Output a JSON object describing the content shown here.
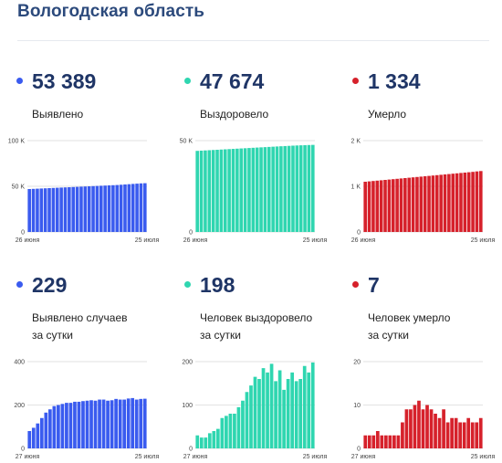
{
  "page": {
    "title": "Вологодская область"
  },
  "colors": {
    "blue": "#3a5bef",
    "green": "#2fd6b0",
    "red": "#d6212b",
    "grid": "#e2e2e2"
  },
  "stats": [
    {
      "value": "53 389",
      "label": "Выявлено",
      "color": "#3a5bef"
    },
    {
      "value": "47 674",
      "label": "Выздоровело",
      "color": "#2fd6b0"
    },
    {
      "value": "1 334",
      "label": "Умерло",
      "color": "#d6212b"
    },
    {
      "value": "229",
      "label": "Выявлено случаев\nза сутки",
      "color": "#3a5bef"
    },
    {
      "value": "198",
      "label": "Человек выздоровело\nза сутки",
      "color": "#2fd6b0"
    },
    {
      "value": "7",
      "label": "Человек умерло\nза сутки",
      "color": "#d6212b"
    }
  ],
  "chart_data": [
    {
      "type": "bar",
      "x_start": "26 июня",
      "x_end": "25 июля",
      "ylim": [
        0,
        100000
      ],
      "y_ticks": [
        {
          "v": 0,
          "t": "0"
        },
        {
          "v": 50000,
          "t": "50 K"
        },
        {
          "v": 100000,
          "t": "100 K"
        }
      ],
      "color": "#3a5bef",
      "values": [
        47000,
        47200,
        47400,
        47600,
        47800,
        48000,
        48200,
        48400,
        48600,
        48800,
        49000,
        49200,
        49400,
        49600,
        49800,
        50000,
        50200,
        50400,
        50600,
        50800,
        51000,
        51200,
        51400,
        51700,
        52000,
        52300,
        52600,
        52900,
        53200,
        53389
      ]
    },
    {
      "type": "bar",
      "x_start": "26 июня",
      "x_end": "25 июля",
      "ylim": [
        0,
        50000
      ],
      "y_ticks": [
        {
          "v": 0,
          "t": "0"
        },
        {
          "v": 50000,
          "t": "50 K"
        }
      ],
      "color": "#2fd6b0",
      "values": [
        44400,
        44520,
        44640,
        44760,
        44880,
        45000,
        45120,
        45240,
        45360,
        45480,
        45600,
        45720,
        45840,
        45960,
        46080,
        46200,
        46320,
        46440,
        46560,
        46680,
        46800,
        46920,
        47030,
        47140,
        47250,
        47350,
        47440,
        47520,
        47600,
        47674
      ]
    },
    {
      "type": "bar",
      "x_start": "26 июня",
      "x_end": "25 июля",
      "ylim": [
        0,
        2000
      ],
      "y_ticks": [
        {
          "v": 0,
          "t": "0"
        },
        {
          "v": 1000,
          "t": "1 K"
        },
        {
          "v": 2000,
          "t": "2 K"
        }
      ],
      "color": "#d6212b",
      "values": [
        1100,
        1108,
        1116,
        1124,
        1132,
        1140,
        1148,
        1156,
        1164,
        1172,
        1180,
        1188,
        1196,
        1204,
        1212,
        1220,
        1228,
        1236,
        1244,
        1252,
        1260,
        1268,
        1276,
        1284,
        1292,
        1300,
        1308,
        1316,
        1326,
        1334
      ]
    },
    {
      "type": "bar",
      "x_start": "27 июня",
      "x_end": "25 июля",
      "ylim": [
        0,
        400
      ],
      "y_ticks": [
        {
          "v": 0,
          "t": "0"
        },
        {
          "v": 200,
          "t": "200"
        },
        {
          "v": 400,
          "t": "400"
        }
      ],
      "color": "#3a5bef",
      "values": [
        80,
        95,
        115,
        140,
        165,
        180,
        195,
        200,
        205,
        210,
        210,
        215,
        215,
        218,
        220,
        222,
        220,
        225,
        225,
        220,
        222,
        228,
        225,
        225,
        230,
        232,
        225,
        228,
        229
      ]
    },
    {
      "type": "bar",
      "x_start": "27 июня",
      "x_end": "25 июля",
      "ylim": [
        0,
        200
      ],
      "y_ticks": [
        {
          "v": 0,
          "t": "0"
        },
        {
          "v": 100,
          "t": "100"
        },
        {
          "v": 200,
          "t": "200"
        }
      ],
      "color": "#2fd6b0",
      "values": [
        30,
        25,
        25,
        35,
        40,
        45,
        70,
        75,
        80,
        80,
        95,
        110,
        130,
        145,
        165,
        160,
        185,
        175,
        195,
        155,
        180,
        135,
        160,
        175,
        155,
        160,
        190,
        175,
        198
      ]
    },
    {
      "type": "bar",
      "x_start": "27 июня",
      "x_end": "25 июля",
      "ylim": [
        0,
        20
      ],
      "y_ticks": [
        {
          "v": 0,
          "t": "0"
        },
        {
          "v": 10,
          "t": "10"
        },
        {
          "v": 20,
          "t": "20"
        }
      ],
      "color": "#d6212b",
      "values": [
        3,
        3,
        3,
        4,
        3,
        3,
        3,
        3,
        3,
        6,
        9,
        9,
        10,
        11,
        9,
        10,
        9,
        8,
        7,
        9,
        6,
        7,
        7,
        6,
        6,
        7,
        6,
        6,
        7
      ]
    }
  ]
}
